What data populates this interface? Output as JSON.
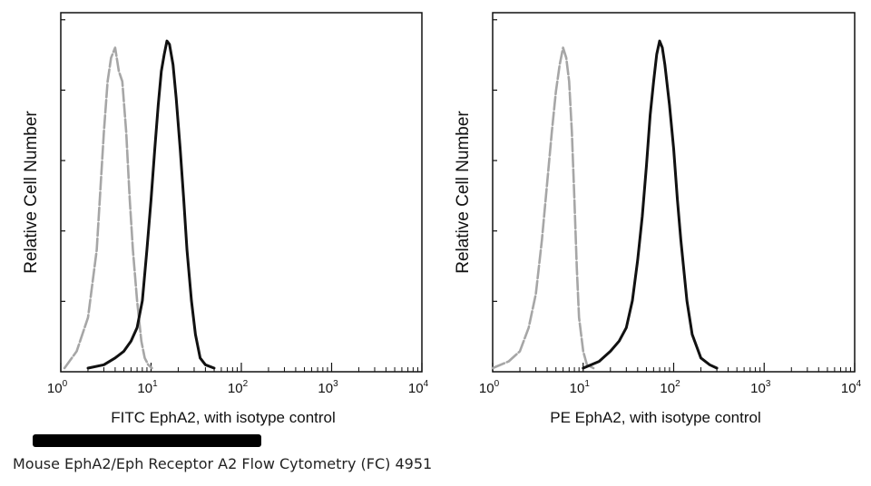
{
  "chart_data": [
    {
      "type": "area",
      "xlabel": "FITC EphA2, with isotype control",
      "ylabel": "Relative Cell Number",
      "xscale": "log",
      "xlim": [
        1,
        10000
      ],
      "xticks": [
        {
          "base": "10",
          "exp": "0"
        },
        {
          "base": "10",
          "exp": "1"
        },
        {
          "base": "10",
          "exp": "2"
        },
        {
          "base": "10",
          "exp": "3"
        },
        {
          "base": "10",
          "exp": "4"
        }
      ],
      "ylim": [
        0,
        1
      ],
      "series": [
        {
          "color": "#a6a6a6",
          "style": "dashed",
          "x": [
            1.1,
            1.5,
            2,
            2.5,
            3,
            3.3,
            3.6,
            4,
            4.4,
            4.8,
            5.3,
            5.8,
            6.3,
            7,
            7.8,
            8.5,
            9.3,
            10.2
          ],
          "y": [
            0,
            0.05,
            0.15,
            0.35,
            0.7,
            0.85,
            0.92,
            0.95,
            0.88,
            0.85,
            0.7,
            0.5,
            0.35,
            0.2,
            0.08,
            0.03,
            0.01,
            0
          ]
        },
        {
          "color": "#111111",
          "style": "solid",
          "x": [
            2,
            3,
            4,
            5,
            6,
            7,
            8,
            9,
            10,
            11,
            12,
            13,
            14,
            15,
            16,
            17.5,
            19,
            21,
            23,
            25,
            28,
            31,
            35,
            40,
            50
          ],
          "y": [
            0,
            0.01,
            0.03,
            0.05,
            0.08,
            0.12,
            0.2,
            0.35,
            0.5,
            0.65,
            0.78,
            0.88,
            0.93,
            0.97,
            0.96,
            0.9,
            0.8,
            0.65,
            0.5,
            0.35,
            0.2,
            0.1,
            0.03,
            0.01,
            0
          ]
        }
      ]
    },
    {
      "type": "area",
      "xlabel": "PE EphA2, with isotype control",
      "ylabel": "Relative Cell Number",
      "xscale": "log",
      "xlim": [
        1,
        10000
      ],
      "xticks": [
        {
          "base": "10",
          "exp": "0"
        },
        {
          "base": "10",
          "exp": "1"
        },
        {
          "base": "10",
          "exp": "2"
        },
        {
          "base": "10",
          "exp": "3"
        },
        {
          "base": "10",
          "exp": "4"
        }
      ],
      "ylim": [
        0,
        1
      ],
      "series": [
        {
          "color": "#a6a6a6",
          "style": "dashed",
          "x": [
            1,
            1.5,
            2,
            2.5,
            3,
            3.5,
            4,
            4.5,
            5,
            5.5,
            6,
            6.5,
            7,
            7.5,
            8,
            8.5,
            9,
            10,
            11,
            13
          ],
          "y": [
            0,
            0.02,
            0.05,
            0.12,
            0.22,
            0.38,
            0.55,
            0.7,
            0.82,
            0.9,
            0.95,
            0.92,
            0.85,
            0.7,
            0.5,
            0.3,
            0.15,
            0.05,
            0.01,
            0
          ]
        },
        {
          "color": "#111111",
          "style": "solid",
          "x": [
            10,
            15,
            20,
            25,
            30,
            35,
            40,
            45,
            50,
            55,
            60,
            65,
            70,
            75,
            80,
            90,
            100,
            110,
            120,
            140,
            160,
            200,
            250,
            300
          ],
          "y": [
            0,
            0.02,
            0.05,
            0.08,
            0.12,
            0.2,
            0.32,
            0.45,
            0.6,
            0.75,
            0.85,
            0.93,
            0.97,
            0.95,
            0.9,
            0.78,
            0.65,
            0.5,
            0.38,
            0.2,
            0.1,
            0.03,
            0.01,
            0
          ]
        }
      ]
    }
  ],
  "caption": "Mouse EphA2/Eph Receptor A2 Flow Cytometry (FC) 4951"
}
